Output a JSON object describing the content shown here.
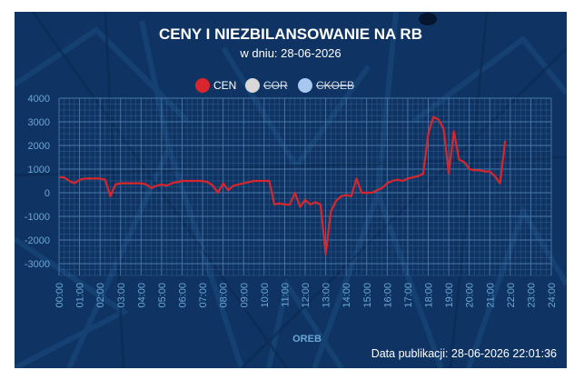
{
  "title": "CENY I NIEZBILANSOWANIE NA RB",
  "subtitle": "w dniu: 28-06-2026",
  "publication": "Data publikacji: 28-06-2026 22:01:36",
  "colors": {
    "background": "#0f3463",
    "cen": "#d9262c",
    "cor": "#d8d8d8",
    "ckoeb": "#a8c8f0",
    "grid": "#4f7fb0",
    "tick": "#6aa7d6"
  },
  "chart_data": {
    "type": "line",
    "xlabel": "OREB",
    "ylabel": "",
    "ylim": [
      -3500,
      4000
    ],
    "yticks": [
      -3000,
      -2000,
      -1000,
      0,
      1000,
      2000,
      3000,
      4000
    ],
    "xticks": [
      "00:00",
      "01:00",
      "02:00",
      "03:00",
      "04:00",
      "05:00",
      "06:00",
      "07:00",
      "08:00",
      "09:00",
      "10:00",
      "11:00",
      "12:00",
      "13:00",
      "14:00",
      "15:00",
      "16:00",
      "17:00",
      "18:00",
      "19:00",
      "20:00",
      "21:00",
      "22:00",
      "23:00",
      "24:00"
    ],
    "legend": [
      {
        "name": "CEN",
        "visible": true
      },
      {
        "name": "COR",
        "visible": false
      },
      {
        "name": "CKOEB",
        "visible": false
      }
    ],
    "series": [
      {
        "name": "CEN",
        "x": [
          0,
          0.25,
          0.5,
          0.75,
          1,
          1.25,
          1.5,
          1.75,
          2,
          2.25,
          2.5,
          2.75,
          3,
          3.25,
          3.5,
          3.75,
          4,
          4.25,
          4.5,
          4.75,
          5,
          5.25,
          5.5,
          5.75,
          6,
          6.25,
          6.5,
          6.75,
          7,
          7.25,
          7.5,
          7.75,
          8,
          8.25,
          8.5,
          8.75,
          9,
          9.25,
          9.5,
          9.75,
          10,
          10.25,
          10.5,
          10.75,
          11,
          11.25,
          11.5,
          11.75,
          12,
          12.25,
          12.5,
          12.75,
          13,
          13.25,
          13.5,
          13.75,
          14,
          14.25,
          14.5,
          14.75,
          15,
          15.25,
          15.5,
          15.75,
          16,
          16.25,
          16.5,
          16.75,
          17,
          17.25,
          17.5,
          17.75,
          18,
          18.25,
          18.5,
          18.75,
          19,
          19.25,
          19.5,
          19.75,
          20,
          20.25,
          20.5,
          20.75,
          21,
          21.25,
          21.5,
          21.75
        ],
        "values": [
          650,
          650,
          500,
          400,
          550,
          600,
          600,
          600,
          600,
          550,
          -150,
          350,
          400,
          400,
          400,
          400,
          400,
          350,
          200,
          300,
          350,
          300,
          400,
          450,
          500,
          500,
          500,
          500,
          500,
          450,
          300,
          0,
          400,
          100,
          300,
          350,
          400,
          450,
          500,
          500,
          500,
          500,
          -500,
          -450,
          -500,
          -500,
          0,
          -600,
          -300,
          -500,
          -400,
          -500,
          -2600,
          -800,
          -350,
          -150,
          -100,
          -150,
          600,
          0,
          0,
          0,
          100,
          200,
          400,
          500,
          550,
          500,
          600,
          650,
          700,
          800,
          2500,
          3200,
          3100,
          2700,
          800,
          2600,
          1400,
          1300,
          1000,
          950,
          950,
          900,
          900,
          700,
          400,
          2200
        ]
      }
    ]
  }
}
